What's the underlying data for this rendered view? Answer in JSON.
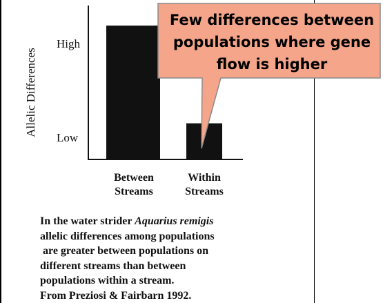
{
  "chart_data": {
    "type": "bar",
    "categories": [
      [
        "Between",
        "Streams"
      ],
      [
        "Within",
        "Streams"
      ]
    ],
    "values": [
      1.0,
      0.27
    ],
    "ylabel": "Allelic Differences",
    "yticks": [
      "High",
      "Low"
    ],
    "ylim": [
      0,
      1.15
    ],
    "bar_color": "#111111",
    "annotation": {
      "lines": [
        "Few differences between",
        "populations where gene",
        "flow is higher"
      ],
      "fill": "#f4a58a",
      "text_color": "#000000",
      "points_to": "Within Streams"
    }
  },
  "caption": {
    "line1_before": "In the water strider ",
    "line1_italic": "Aquarius remigis",
    "line2": "allelic differences among populations",
    "line3": " are greater between populations on",
    "line4": "different streams than between",
    "line5": "populations within a stream.",
    "line6": "From Preziosi & Fairbarn 1992."
  }
}
